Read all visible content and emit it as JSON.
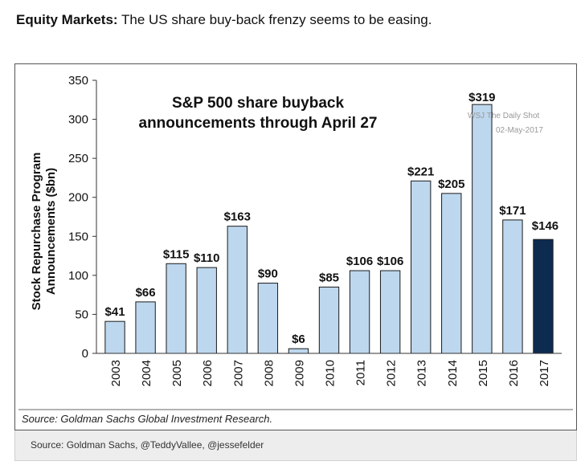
{
  "headline": {
    "lead": "Equity Markets:",
    "text": "The US share buy-back frenzy seems to be easing."
  },
  "chart_data": {
    "type": "bar",
    "title_line1": "S&P 500 share buyback",
    "title_line2": "announcements through April 27",
    "ylabel_line1": "Stock Repurchase Program",
    "ylabel_line2": "Announcements ($bn)",
    "xlabel": "",
    "ylim": [
      0,
      350
    ],
    "yticks": [
      0,
      50,
      100,
      150,
      200,
      250,
      300,
      350
    ],
    "grid": false,
    "categories": [
      "2003",
      "2004",
      "2005",
      "2006",
      "2007",
      "2008",
      "2009",
      "2010",
      "2011",
      "2012",
      "2013",
      "2014",
      "2015",
      "2016",
      "2017"
    ],
    "values": [
      41,
      66,
      115,
      110,
      163,
      90,
      6,
      85,
      106,
      106,
      221,
      205,
      319,
      171,
      146
    ],
    "data_labels": [
      "$41",
      "$66",
      "$115",
      "$110",
      "$163",
      "$90",
      "$6",
      "$85",
      "$106",
      "$106",
      "$221",
      "$205",
      "$319",
      "$171",
      "$146"
    ],
    "bar_color": "#bdd7ee",
    "highlight_color": "#0d2b4f",
    "highlight_index": 14,
    "source": "Source: Goldman Sachs Global Investment Research.",
    "watermark_line1": "WSJ The Daily Shot",
    "watermark_line2": "02-May-2017"
  },
  "caption": {
    "text": "Source: Goldman Sachs, @TeddyVallee, @jessefelder"
  }
}
